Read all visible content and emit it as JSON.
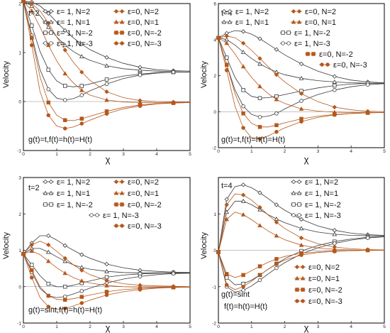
{
  "colors": {
    "gray": "#3a3a3a",
    "brown": "#b5581c",
    "frame": "#000000"
  },
  "chart_data": [
    {
      "type": "line",
      "xlabel": "χ",
      "ylabel": "Velocity",
      "xlim": [
        0,
        5
      ],
      "ylim": [
        -1,
        2
      ],
      "x_ticks": [
        "0",
        "1",
        "2",
        "3",
        "4",
        "5"
      ],
      "y_ticks": [
        "-1",
        "0",
        "1",
        "2"
      ],
      "annotations": [
        "t=2",
        "g(t)=t,f(t)=h(t)=H(t)"
      ],
      "legend": [
        "ε= 1, N=2",
        "ε=0, N=2",
        "ε= 1, N=1",
        "ε=0, N=1",
        "ε= 1, N=-2",
        "ε=0, N=-2",
        "ε= 1, N=-3",
        "ε=0, N=-3"
      ],
      "x": [
        0,
        0.25,
        0.5,
        0.75,
        1,
        1.25,
        1.5,
        1.75,
        2,
        2.5,
        3,
        3.5,
        4,
        4.5,
        5
      ],
      "series": [
        {
          "name": "ε= 1, N=2",
          "group": "gray",
          "marker": "diamond-open",
          "values": [
            2.05,
            2.03,
            1.95,
            1.8,
            1.62,
            1.45,
            1.3,
            1.17,
            1.06,
            0.9,
            0.78,
            0.7,
            0.65,
            0.63,
            0.62
          ]
        },
        {
          "name": "ε= 1, N=1",
          "group": "gray",
          "marker": "triangle-open",
          "values": [
            2.05,
            1.95,
            1.75,
            1.52,
            1.32,
            1.15,
            1.02,
            0.92,
            0.84,
            0.73,
            0.67,
            0.64,
            0.62,
            0.61,
            0.6
          ]
        },
        {
          "name": "ε= 1, N=-2",
          "group": "gray",
          "marker": "square-open",
          "values": [
            2.05,
            1.55,
            1.02,
            0.65,
            0.42,
            0.32,
            0.3,
            0.32,
            0.36,
            0.45,
            0.52,
            0.56,
            0.59,
            0.6,
            0.6
          ]
        },
        {
          "name": "ε= 1, N=-3",
          "group": "gray",
          "marker": "circle-open",
          "values": [
            2.05,
            1.35,
            0.65,
            0.25,
            0.07,
            0.03,
            0.06,
            0.13,
            0.22,
            0.36,
            0.47,
            0.54,
            0.58,
            0.6,
            0.6
          ]
        },
        {
          "name": "ε=0, N=2",
          "group": "brown",
          "marker": "diamond-filled",
          "values": [
            2.05,
            2.0,
            1.85,
            1.6,
            1.32,
            1.05,
            0.8,
            0.6,
            0.43,
            0.2,
            0.08,
            0.02,
            0.0,
            -0.01,
            -0.01
          ]
        },
        {
          "name": "ε=0, N=1",
          "group": "brown",
          "marker": "triangle-filled",
          "values": [
            2.05,
            1.85,
            1.52,
            1.15,
            0.83,
            0.57,
            0.38,
            0.23,
            0.13,
            0.03,
            -0.01,
            -0.02,
            -0.02,
            -0.02,
            -0.02
          ]
        },
        {
          "name": "ε=0, N=-2",
          "group": "brown",
          "marker": "square-filled",
          "values": [
            2.05,
            1.3,
            0.5,
            -0.02,
            -0.28,
            -0.38,
            -0.39,
            -0.35,
            -0.3,
            -0.2,
            -0.12,
            -0.07,
            -0.04,
            -0.03,
            -0.02
          ]
        },
        {
          "name": "ε=0, N=-3",
          "group": "brown",
          "marker": "circle-filled",
          "values": [
            2.05,
            1.15,
            0.2,
            -0.28,
            -0.5,
            -0.55,
            -0.52,
            -0.45,
            -0.38,
            -0.25,
            -0.15,
            -0.09,
            -0.05,
            -0.03,
            -0.02
          ]
        }
      ]
    },
    {
      "type": "line",
      "xlabel": "χ",
      "ylabel": "Velocity",
      "xlim": [
        0,
        5
      ],
      "ylim": [
        -2,
        6
      ],
      "x_ticks": [
        "0",
        "1",
        "2",
        "3",
        "4",
        "5"
      ],
      "y_ticks": [
        "-2",
        "0",
        "2",
        "4",
        "6"
      ],
      "annotations": [
        "t=4",
        "g(t)=t,f(t)=h(t)=H(t)"
      ],
      "legend": [
        "ε= 1, N=2",
        "ε=0, N=2",
        "ε= 1, N=1",
        "ε=0, N=1",
        "ε= 1, N=-2",
        "ε= 1, N=-3",
        "ε=0, N=-2",
        "ε=0, N=-3"
      ],
      "x": [
        0,
        0.25,
        0.5,
        0.75,
        1,
        1.25,
        1.5,
        1.75,
        2,
        2.5,
        3,
        3.5,
        4,
        4.5,
        5
      ],
      "series": [
        {
          "name": "ε= 1, N=2",
          "group": "gray",
          "marker": "diamond-open",
          "values": [
            4.1,
            4.35,
            4.5,
            4.45,
            4.3,
            4.05,
            3.75,
            3.45,
            3.15,
            2.65,
            2.25,
            1.95,
            1.75,
            1.65,
            1.6
          ]
        },
        {
          "name": "ε= 1, N=1",
          "group": "gray",
          "marker": "triangle-open",
          "values": [
            4.1,
            4.0,
            3.7,
            3.3,
            2.95,
            2.65,
            2.4,
            2.2,
            2.05,
            1.85,
            1.72,
            1.65,
            1.6,
            1.58,
            1.58
          ]
        },
        {
          "name": "ε= 1, N=-2",
          "group": "gray",
          "marker": "square-open",
          "values": [
            4.1,
            3.0,
            1.9,
            1.2,
            0.85,
            0.75,
            0.78,
            0.85,
            0.95,
            1.15,
            1.32,
            1.45,
            1.53,
            1.57,
            1.58
          ]
        },
        {
          "name": "ε= 1, N=-3",
          "group": "gray",
          "marker": "circle-open",
          "values": [
            4.1,
            2.6,
            1.2,
            0.3,
            -0.15,
            -0.3,
            -0.25,
            -0.1,
            0.15,
            0.6,
            0.95,
            1.2,
            1.38,
            1.5,
            1.55
          ]
        },
        {
          "name": "ε=0, N=2",
          "group": "brown",
          "marker": "diamond-filled",
          "values": [
            4.1,
            4.2,
            4.1,
            3.8,
            3.4,
            2.95,
            2.5,
            2.05,
            1.65,
            1.0,
            0.55,
            0.25,
            0.1,
            0.02,
            0.0
          ]
        },
        {
          "name": "ε=0, N=1",
          "group": "brown",
          "marker": "triangle-filled",
          "values": [
            4.1,
            3.8,
            3.2,
            2.5,
            1.9,
            1.4,
            1.0,
            0.68,
            0.45,
            0.15,
            0.03,
            -0.03,
            -0.05,
            -0.05,
            -0.05
          ]
        },
        {
          "name": "ε=0, N=-2",
          "group": "brown",
          "marker": "square-filled",
          "values": [
            4.1,
            2.6,
            1.0,
            -0.1,
            -0.65,
            -0.85,
            -0.85,
            -0.75,
            -0.62,
            -0.4,
            -0.25,
            -0.15,
            -0.1,
            -0.07,
            -0.05
          ]
        },
        {
          "name": "ε=0, N=-3",
          "group": "brown",
          "marker": "circle-filled",
          "values": [
            4.1,
            2.3,
            0.3,
            -0.9,
            -1.45,
            -1.5,
            -1.35,
            -1.12,
            -0.9,
            -0.55,
            -0.32,
            -0.18,
            -0.1,
            -0.06,
            -0.04
          ]
        }
      ]
    },
    {
      "type": "line",
      "xlabel": "χ",
      "ylabel": "Velocity",
      "xlim": [
        0,
        5
      ],
      "ylim": [
        -1,
        3
      ],
      "x_ticks": [
        "0",
        "1",
        "2",
        "3",
        "4",
        "5"
      ],
      "y_ticks": [
        "-1",
        "0",
        "1",
        "2",
        "3"
      ],
      "annotations": [
        "t=2",
        "g(t)=sint,f(t)=h(t)=H(t)"
      ],
      "legend": [
        "ε= 1, N=2",
        "ε=0, N=2",
        "ε= 1, N=1",
        "ε=0, N=1",
        "ε= 1, N=-2",
        "ε=0, N=-2",
        "ε= 1, N=-3",
        "ε=0, N=-3"
      ],
      "x": [
        0,
        0.25,
        0.5,
        0.75,
        1,
        1.25,
        1.5,
        1.75,
        2,
        2.5,
        3,
        3.5,
        4,
        4.5,
        5
      ],
      "series": [
        {
          "name": "ε= 1, N=2",
          "group": "gray",
          "marker": "diamond-open",
          "values": [
            0.9,
            1.2,
            1.4,
            1.4,
            1.28,
            1.13,
            1.0,
            0.88,
            0.78,
            0.62,
            0.52,
            0.45,
            0.42,
            0.4,
            0.39
          ]
        },
        {
          "name": "ε= 1, N=1",
          "group": "gray",
          "marker": "triangle-open",
          "values": [
            0.9,
            1.05,
            1.05,
            0.95,
            0.82,
            0.7,
            0.6,
            0.53,
            0.48,
            0.42,
            0.39,
            0.38,
            0.38,
            0.38,
            0.38
          ]
        },
        {
          "name": "ε= 1, N=-2",
          "group": "gray",
          "marker": "square-open",
          "values": [
            0.9,
            0.6,
            0.3,
            0.08,
            0.0,
            0.0,
            0.04,
            0.1,
            0.16,
            0.26,
            0.32,
            0.35,
            0.37,
            0.38,
            0.38
          ]
        },
        {
          "name": "ε= 1, N=-3",
          "group": "gray",
          "marker": "circle-open",
          "values": [
            0.9,
            0.4,
            -0.05,
            -0.25,
            -0.3,
            -0.27,
            -0.2,
            -0.12,
            -0.04,
            0.1,
            0.21,
            0.28,
            0.33,
            0.36,
            0.37
          ]
        },
        {
          "name": "ε=0, N=2",
          "group": "brown",
          "marker": "diamond-filled",
          "values": [
            0.9,
            1.15,
            1.25,
            1.15,
            0.97,
            0.78,
            0.6,
            0.45,
            0.33,
            0.17,
            0.08,
            0.04,
            0.02,
            0.01,
            0.0
          ]
        },
        {
          "name": "ε=0, N=1",
          "group": "brown",
          "marker": "triangle-filled",
          "values": [
            0.9,
            0.98,
            0.88,
            0.7,
            0.52,
            0.37,
            0.25,
            0.16,
            0.1,
            0.03,
            0.0,
            -0.01,
            -0.01,
            -0.01,
            -0.01
          ]
        },
        {
          "name": "ε=0, N=-2",
          "group": "brown",
          "marker": "square-filled",
          "values": [
            0.9,
            0.45,
            0.0,
            -0.25,
            -0.35,
            -0.36,
            -0.33,
            -0.28,
            -0.23,
            -0.14,
            -0.08,
            -0.05,
            -0.03,
            -0.02,
            -0.01
          ]
        },
        {
          "name": "ε=0, N=-3",
          "group": "brown",
          "marker": "circle-filled",
          "values": [
            0.9,
            0.25,
            -0.3,
            -0.55,
            -0.62,
            -0.6,
            -0.53,
            -0.45,
            -0.37,
            -0.23,
            -0.14,
            -0.08,
            -0.04,
            -0.02,
            -0.01
          ]
        }
      ]
    },
    {
      "type": "line",
      "xlabel": "χ",
      "ylabel": "Velocity",
      "xlim": [
        0,
        5
      ],
      "ylim": [
        -2,
        2
      ],
      "x_ticks": [
        "0",
        "1",
        "2",
        "3",
        "4",
        "5"
      ],
      "y_ticks": [
        "-2",
        "-1",
        "0",
        "1"
      ],
      "annotations": [
        "t=4",
        "g(t)=sint",
        "f(t)=h(t)=H(t)"
      ],
      "legend": [
        "ε= 1, N=2",
        "ε= 1, N=1",
        "ε= 1, N=-2",
        "ε= 1, N=-3",
        "ε=0, N=2",
        "ε=0, N=1",
        "ε=0, N=-2",
        "ε=0, N=-3"
      ],
      "x": [
        0,
        0.25,
        0.5,
        0.75,
        1,
        1.25,
        1.5,
        1.75,
        2,
        2.5,
        3,
        3.5,
        4,
        4.5,
        5
      ],
      "series": [
        {
          "name": "ε= 1, N=2",
          "group": "gray",
          "marker": "diamond-open",
          "values": [
            -0.05,
            1.4,
            1.75,
            1.8,
            1.72,
            1.58,
            1.42,
            1.25,
            1.1,
            0.85,
            0.67,
            0.55,
            0.47,
            0.43,
            0.41
          ]
        },
        {
          "name": "ε= 1, N=1",
          "group": "gray",
          "marker": "triangle-open",
          "values": [
            -0.05,
            1.05,
            1.35,
            1.35,
            1.25,
            1.12,
            0.98,
            0.86,
            0.76,
            0.6,
            0.5,
            0.44,
            0.41,
            0.4,
            0.4
          ]
        },
        {
          "name": "ε= 1, N=-2",
          "group": "gray",
          "marker": "square-open",
          "values": [
            -0.05,
            -0.75,
            -0.95,
            -0.92,
            -0.82,
            -0.68,
            -0.52,
            -0.37,
            -0.23,
            -0.02,
            0.13,
            0.24,
            0.31,
            0.36,
            0.38
          ]
        },
        {
          "name": "ε= 1, N=-3",
          "group": "gray",
          "marker": "circle-open",
          "values": [
            -0.05,
            -1.0,
            -1.15,
            -1.1,
            -0.98,
            -0.82,
            -0.65,
            -0.49,
            -0.34,
            -0.1,
            0.07,
            0.19,
            0.28,
            0.34,
            0.37
          ]
        },
        {
          "name": "ε=0, N=2",
          "group": "brown",
          "marker": "diamond-filled",
          "values": [
            -0.05,
            1.25,
            1.55,
            1.52,
            1.38,
            1.18,
            0.97,
            0.77,
            0.6,
            0.34,
            0.18,
            0.09,
            0.04,
            0.02,
            0.01
          ]
        },
        {
          "name": "ε=0, N=1",
          "group": "brown",
          "marker": "triangle-filled",
          "values": [
            -0.05,
            0.85,
            1.05,
            0.98,
            0.84,
            0.68,
            0.53,
            0.4,
            0.29,
            0.14,
            0.06,
            0.03,
            0.01,
            0.0,
            0.0
          ]
        },
        {
          "name": "ε=0, N=-2",
          "group": "brown",
          "marker": "square-filled",
          "values": [
            -0.05,
            -0.65,
            -0.75,
            -0.68,
            -0.56,
            -0.44,
            -0.33,
            -0.24,
            -0.17,
            -0.08,
            -0.04,
            -0.02,
            -0.01,
            0.0,
            0.0
          ]
        },
        {
          "name": "ε=0, N=-3",
          "group": "brown",
          "marker": "circle-filled",
          "values": [
            -0.05,
            -0.95,
            -1.08,
            -1.0,
            -0.85,
            -0.68,
            -0.52,
            -0.38,
            -0.27,
            -0.13,
            -0.06,
            -0.03,
            -0.01,
            0.0,
            0.0
          ]
        }
      ]
    }
  ]
}
